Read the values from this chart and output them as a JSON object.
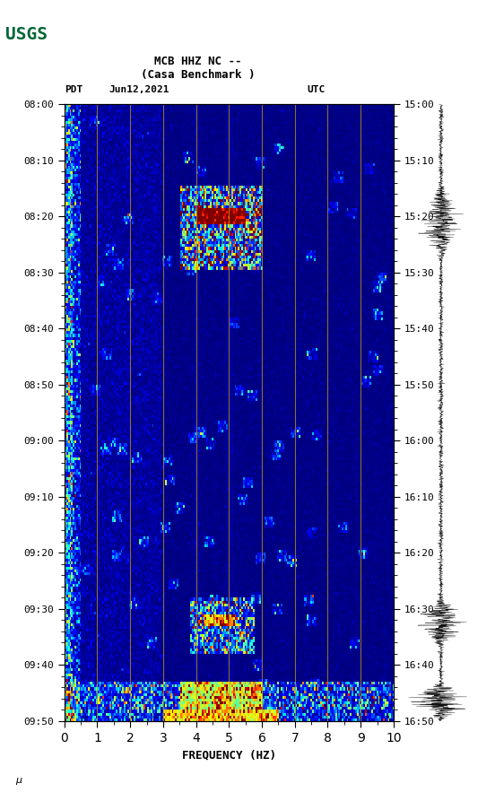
{
  "title_line1": "MCB HHZ NC --",
  "title_line2": "(Casa Benchmark )",
  "left_label": "PDT",
  "date_label": "Jun12,2021",
  "right_label": "UTC",
  "freq_label": "FREQUENCY (HZ)",
  "freq_min": 0,
  "freq_max": 10,
  "pdt_ticks": [
    "08:00",
    "08:10",
    "08:20",
    "08:30",
    "08:40",
    "08:50",
    "09:00",
    "09:10",
    "09:20",
    "09:30",
    "09:40",
    "09:50"
  ],
  "utc_ticks": [
    "15:00",
    "15:10",
    "15:20",
    "15:30",
    "15:40",
    "15:50",
    "16:00",
    "16:10",
    "16:20",
    "16:30",
    "16:40",
    "16:50"
  ],
  "freq_ticks": [
    0,
    1,
    2,
    3,
    4,
    5,
    6,
    7,
    8,
    9,
    10
  ],
  "colormap": "jet",
  "bg_color": "#ffffff",
  "vertical_lines_freq": [
    1.0,
    2.0,
    3.0,
    4.0,
    5.0,
    6.0,
    7.0,
    8.0,
    9.0
  ],
  "vline_color": "#c8a000",
  "vline_alpha": 0.7
}
